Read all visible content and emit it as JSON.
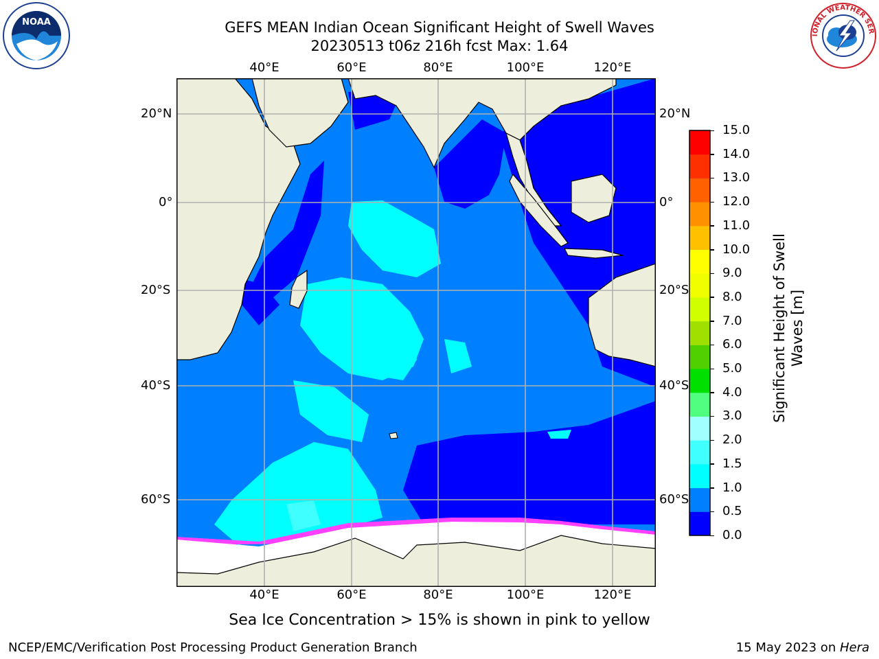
{
  "title": {
    "line1": "GEFS MEAN Indian Ocean Significant Height of Swell Waves",
    "line2": "20230513 t06z 216h fcst   Max: 1.64"
  },
  "logos": {
    "left": {
      "icon": "noaa-logo",
      "text": "NOAA"
    },
    "right": {
      "icon": "national-weather-service-logo",
      "text": "NATIONAL WEATHER SERVICE"
    }
  },
  "map": {
    "lon_ticks_top": [
      "40°E",
      "60°E",
      "80°E",
      "100°E",
      "120°E"
    ],
    "lon_ticks_bottom": [
      "40°E",
      "60°E",
      "80°E",
      "100°E",
      "120°E"
    ],
    "lat_ticks_left": [
      "20°N",
      "0°",
      "20°S",
      "40°S",
      "60°S"
    ],
    "lat_ticks_right": [
      "20°N",
      "0°",
      "20°S",
      "40°S",
      "60°S"
    ],
    "colors": {
      "land": "#eeeedd",
      "ice": "#ffffff",
      "grid": "#b0b0b0",
      "coast": "#000000",
      "ice_edge_pink": "#ff40ff",
      "ice_edge_orange": "#ffb030"
    }
  },
  "colorbar": {
    "title_line1": "Significant Height of Swell",
    "title_line2": "Waves [m]",
    "tick_labels": [
      "0.0",
      "0.5",
      "1.0",
      "1.5",
      "2.0",
      "3.0",
      "4.0",
      "5.0",
      "6.0",
      "7.0",
      "8.0",
      "9.0",
      "10.0",
      "11.0",
      "12.0",
      "13.0",
      "14.0",
      "15.0"
    ],
    "colors": [
      "#0000ff",
      "#0080ff",
      "#00ffff",
      "#40ffff",
      "#a0ffff",
      "#50ff80",
      "#00e000",
      "#50d000",
      "#a0e000",
      "#d0ff00",
      "#f0ff00",
      "#ffff00",
      "#ffc000",
      "#ff9000",
      "#ff6000",
      "#ff3000",
      "#ff0000"
    ]
  },
  "caption": "Sea Ice Concentration > 15% is shown in pink to yellow",
  "footer": {
    "left": "NCEP/EMC/Verification Post Processing Product Generation Branch",
    "right_date": "15 May 2023 on ",
    "right_machine": "Hera"
  }
}
